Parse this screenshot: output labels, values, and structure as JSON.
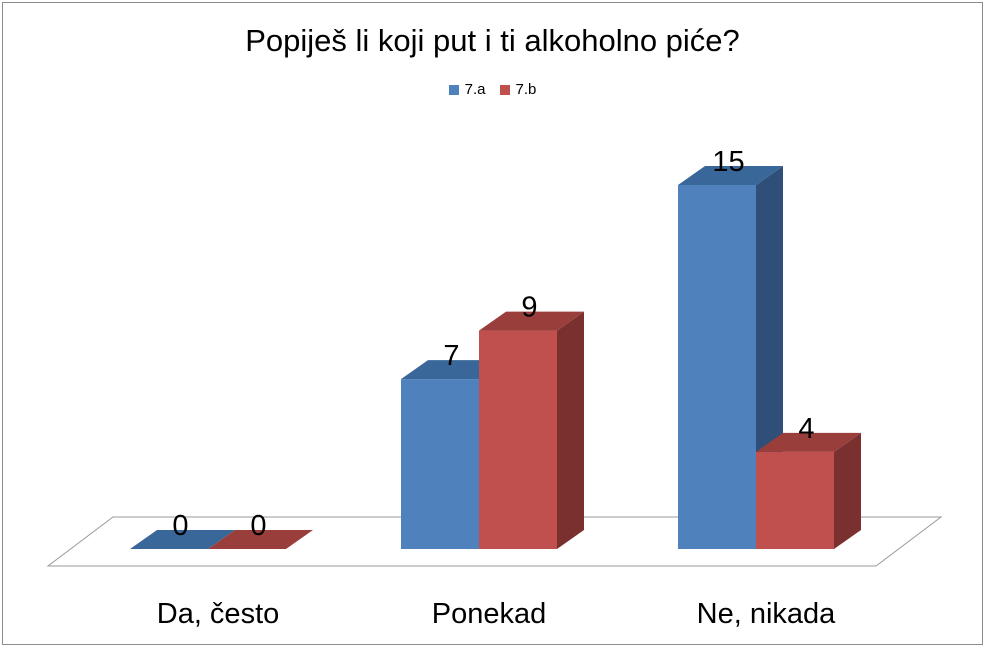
{
  "chart_data": {
    "type": "bar",
    "title": "Popiješ li koji put i ti alkoholno piće?",
    "categories": [
      "Da, često",
      "Ponekad",
      "Ne, nikada"
    ],
    "series": [
      {
        "name": "7.a",
        "values": [
          0,
          7,
          15
        ],
        "color": "#4f81bd",
        "side_color": "#2f4f79",
        "top_color": "#3a6799"
      },
      {
        "name": "7.b",
        "values": [
          0,
          9,
          4
        ],
        "color": "#c0504d",
        "side_color": "#7a302e",
        "top_color": "#9a3e3b"
      }
    ],
    "ylim": [
      0,
      15
    ],
    "xlabel": "",
    "ylabel": "",
    "grid": false,
    "legend_position": "top-center",
    "style": "3d-clustered-column"
  }
}
